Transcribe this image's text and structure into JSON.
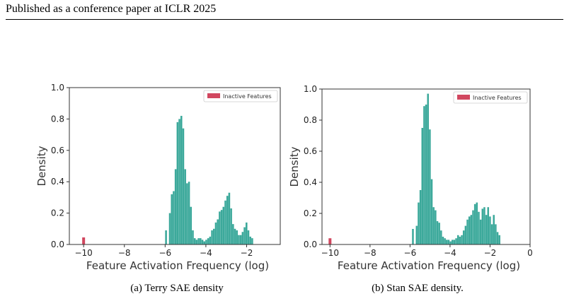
{
  "page_header": "Published as a conference paper at ICLR 2025",
  "captions": [
    "(a) Terry SAE density",
    "(b) Stan SAE density."
  ],
  "colors": {
    "active": "#3ca99b",
    "inactive": "#d1475f"
  },
  "chart_data": [
    {
      "type": "bar",
      "xlabel": "Feature Activation Frequency (log)",
      "ylabel": "Density",
      "xlim": [
        -10.7,
        -0.35
      ],
      "ylim": [
        0,
        1.0
      ],
      "xticks": [
        -10,
        -8,
        -6,
        -4,
        -2
      ],
      "xtick_labels": [
        "−10",
        "−8",
        "−6",
        "−4",
        "−2"
      ],
      "yticks": [
        0.0,
        0.2,
        0.4,
        0.6,
        0.8,
        1.0
      ],
      "ytick_labels": [
        "0.0",
        "0.2",
        "0.4",
        "0.6",
        "0.8",
        "1.0"
      ],
      "legend": {
        "label": "Inactive Features",
        "position": "top-right"
      },
      "bin_width": 0.094,
      "inactive": {
        "x": -10.0,
        "density": 0.045
      },
      "active_start": -6.0,
      "active_density": [
        0.09,
        0.0,
        0.2,
        0.32,
        0.34,
        0.48,
        0.78,
        0.8,
        0.82,
        0.74,
        0.48,
        0.39,
        0.4,
        0.24,
        0.09,
        0.04,
        0.03,
        0.04,
        0.04,
        0.03,
        0.02,
        0.03,
        0.04,
        0.05,
        0.09,
        0.1,
        0.14,
        0.16,
        0.21,
        0.22,
        0.24,
        0.28,
        0.31,
        0.33,
        0.23,
        0.13,
        0.1,
        0.09,
        0.06,
        0.06,
        0.08,
        0.11,
        0.14,
        0.09,
        0.05,
        0.04
      ]
    },
    {
      "type": "bar",
      "xlabel": "Feature Activation Frequency (log)",
      "ylabel": "Density",
      "xlim": [
        -10.4,
        0.0
      ],
      "ylim": [
        0,
        1.0
      ],
      "xticks": [
        -10,
        -8,
        -6,
        -4,
        -2,
        0
      ],
      "xtick_labels": [
        "−10",
        "−8",
        "−6",
        "−4",
        "−2",
        "0"
      ],
      "yticks": [
        0.0,
        0.2,
        0.4,
        0.6,
        0.8,
        1.0
      ],
      "ytick_labels": [
        "0.0",
        "0.2",
        "0.4",
        "0.6",
        "0.8",
        "1.0"
      ],
      "legend": {
        "label": "Inactive Features",
        "position": "top-right"
      },
      "bin_width": 0.094,
      "inactive": {
        "x": -10.0,
        "density": 0.04
      },
      "active_start": -5.9,
      "active_density": [
        0.1,
        0.0,
        0.12,
        0.27,
        0.35,
        0.75,
        0.89,
        0.9,
        0.97,
        0.74,
        0.42,
        0.24,
        0.22,
        0.15,
        0.14,
        0.09,
        0.05,
        0.04,
        0.03,
        0.03,
        0.02,
        0.03,
        0.03,
        0.04,
        0.06,
        0.05,
        0.06,
        0.09,
        0.12,
        0.16,
        0.18,
        0.19,
        0.22,
        0.26,
        0.27,
        0.21,
        0.16,
        0.23,
        0.24,
        0.19,
        0.24,
        0.18,
        0.13,
        0.19,
        0.13,
        0.08,
        0.06
      ]
    }
  ]
}
